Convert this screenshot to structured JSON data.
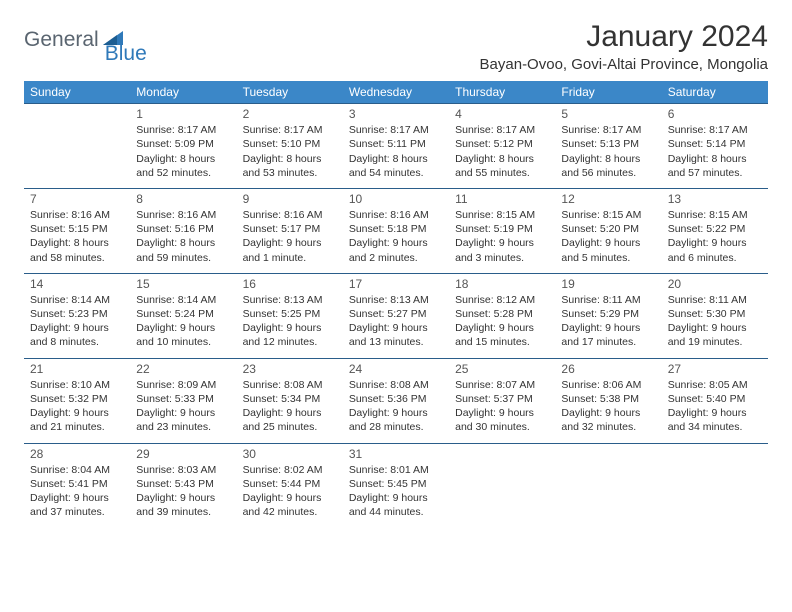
{
  "brand": {
    "part1": "General",
    "part2": "Blue"
  },
  "title": "January 2024",
  "location": "Bayan-Ovoo, Govi-Altai Province, Mongolia",
  "colors": {
    "header_bg": "#3b87c8",
    "header_text": "#ffffff",
    "row_border": "#2a5d8a",
    "brand_gray": "#5a6570",
    "brand_blue": "#2f79b9",
    "text": "#333333",
    "background": "#ffffff"
  },
  "day_headers": [
    "Sunday",
    "Monday",
    "Tuesday",
    "Wednesday",
    "Thursday",
    "Friday",
    "Saturday"
  ],
  "weeks": [
    [
      {
        "day": "",
        "sunrise": "",
        "sunset": "",
        "daylight": ""
      },
      {
        "day": "1",
        "sunrise": "Sunrise: 8:17 AM",
        "sunset": "Sunset: 5:09 PM",
        "daylight": "Daylight: 8 hours and 52 minutes."
      },
      {
        "day": "2",
        "sunrise": "Sunrise: 8:17 AM",
        "sunset": "Sunset: 5:10 PM",
        "daylight": "Daylight: 8 hours and 53 minutes."
      },
      {
        "day": "3",
        "sunrise": "Sunrise: 8:17 AM",
        "sunset": "Sunset: 5:11 PM",
        "daylight": "Daylight: 8 hours and 54 minutes."
      },
      {
        "day": "4",
        "sunrise": "Sunrise: 8:17 AM",
        "sunset": "Sunset: 5:12 PM",
        "daylight": "Daylight: 8 hours and 55 minutes."
      },
      {
        "day": "5",
        "sunrise": "Sunrise: 8:17 AM",
        "sunset": "Sunset: 5:13 PM",
        "daylight": "Daylight: 8 hours and 56 minutes."
      },
      {
        "day": "6",
        "sunrise": "Sunrise: 8:17 AM",
        "sunset": "Sunset: 5:14 PM",
        "daylight": "Daylight: 8 hours and 57 minutes."
      }
    ],
    [
      {
        "day": "7",
        "sunrise": "Sunrise: 8:16 AM",
        "sunset": "Sunset: 5:15 PM",
        "daylight": "Daylight: 8 hours and 58 minutes."
      },
      {
        "day": "8",
        "sunrise": "Sunrise: 8:16 AM",
        "sunset": "Sunset: 5:16 PM",
        "daylight": "Daylight: 8 hours and 59 minutes."
      },
      {
        "day": "9",
        "sunrise": "Sunrise: 8:16 AM",
        "sunset": "Sunset: 5:17 PM",
        "daylight": "Daylight: 9 hours and 1 minute."
      },
      {
        "day": "10",
        "sunrise": "Sunrise: 8:16 AM",
        "sunset": "Sunset: 5:18 PM",
        "daylight": "Daylight: 9 hours and 2 minutes."
      },
      {
        "day": "11",
        "sunrise": "Sunrise: 8:15 AM",
        "sunset": "Sunset: 5:19 PM",
        "daylight": "Daylight: 9 hours and 3 minutes."
      },
      {
        "day": "12",
        "sunrise": "Sunrise: 8:15 AM",
        "sunset": "Sunset: 5:20 PM",
        "daylight": "Daylight: 9 hours and 5 minutes."
      },
      {
        "day": "13",
        "sunrise": "Sunrise: 8:15 AM",
        "sunset": "Sunset: 5:22 PM",
        "daylight": "Daylight: 9 hours and 6 minutes."
      }
    ],
    [
      {
        "day": "14",
        "sunrise": "Sunrise: 8:14 AM",
        "sunset": "Sunset: 5:23 PM",
        "daylight": "Daylight: 9 hours and 8 minutes."
      },
      {
        "day": "15",
        "sunrise": "Sunrise: 8:14 AM",
        "sunset": "Sunset: 5:24 PM",
        "daylight": "Daylight: 9 hours and 10 minutes."
      },
      {
        "day": "16",
        "sunrise": "Sunrise: 8:13 AM",
        "sunset": "Sunset: 5:25 PM",
        "daylight": "Daylight: 9 hours and 12 minutes."
      },
      {
        "day": "17",
        "sunrise": "Sunrise: 8:13 AM",
        "sunset": "Sunset: 5:27 PM",
        "daylight": "Daylight: 9 hours and 13 minutes."
      },
      {
        "day": "18",
        "sunrise": "Sunrise: 8:12 AM",
        "sunset": "Sunset: 5:28 PM",
        "daylight": "Daylight: 9 hours and 15 minutes."
      },
      {
        "day": "19",
        "sunrise": "Sunrise: 8:11 AM",
        "sunset": "Sunset: 5:29 PM",
        "daylight": "Daylight: 9 hours and 17 minutes."
      },
      {
        "day": "20",
        "sunrise": "Sunrise: 8:11 AM",
        "sunset": "Sunset: 5:30 PM",
        "daylight": "Daylight: 9 hours and 19 minutes."
      }
    ],
    [
      {
        "day": "21",
        "sunrise": "Sunrise: 8:10 AM",
        "sunset": "Sunset: 5:32 PM",
        "daylight": "Daylight: 9 hours and 21 minutes."
      },
      {
        "day": "22",
        "sunrise": "Sunrise: 8:09 AM",
        "sunset": "Sunset: 5:33 PM",
        "daylight": "Daylight: 9 hours and 23 minutes."
      },
      {
        "day": "23",
        "sunrise": "Sunrise: 8:08 AM",
        "sunset": "Sunset: 5:34 PM",
        "daylight": "Daylight: 9 hours and 25 minutes."
      },
      {
        "day": "24",
        "sunrise": "Sunrise: 8:08 AM",
        "sunset": "Sunset: 5:36 PM",
        "daylight": "Daylight: 9 hours and 28 minutes."
      },
      {
        "day": "25",
        "sunrise": "Sunrise: 8:07 AM",
        "sunset": "Sunset: 5:37 PM",
        "daylight": "Daylight: 9 hours and 30 minutes."
      },
      {
        "day": "26",
        "sunrise": "Sunrise: 8:06 AM",
        "sunset": "Sunset: 5:38 PM",
        "daylight": "Daylight: 9 hours and 32 minutes."
      },
      {
        "day": "27",
        "sunrise": "Sunrise: 8:05 AM",
        "sunset": "Sunset: 5:40 PM",
        "daylight": "Daylight: 9 hours and 34 minutes."
      }
    ],
    [
      {
        "day": "28",
        "sunrise": "Sunrise: 8:04 AM",
        "sunset": "Sunset: 5:41 PM",
        "daylight": "Daylight: 9 hours and 37 minutes."
      },
      {
        "day": "29",
        "sunrise": "Sunrise: 8:03 AM",
        "sunset": "Sunset: 5:43 PM",
        "daylight": "Daylight: 9 hours and 39 minutes."
      },
      {
        "day": "30",
        "sunrise": "Sunrise: 8:02 AM",
        "sunset": "Sunset: 5:44 PM",
        "daylight": "Daylight: 9 hours and 42 minutes."
      },
      {
        "day": "31",
        "sunrise": "Sunrise: 8:01 AM",
        "sunset": "Sunset: 5:45 PM",
        "daylight": "Daylight: 9 hours and 44 minutes."
      },
      {
        "day": "",
        "sunrise": "",
        "sunset": "",
        "daylight": ""
      },
      {
        "day": "",
        "sunrise": "",
        "sunset": "",
        "daylight": ""
      },
      {
        "day": "",
        "sunrise": "",
        "sunset": "",
        "daylight": ""
      }
    ]
  ]
}
